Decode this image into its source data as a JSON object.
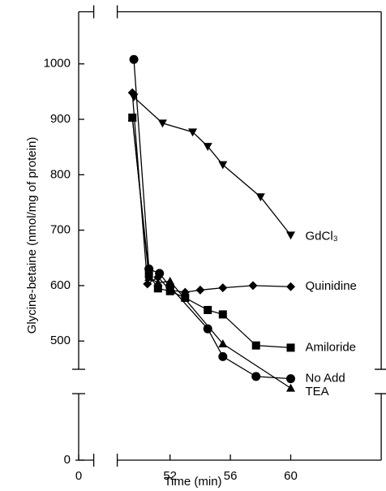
{
  "chart_data": {
    "type": "line",
    "x_label": "Time (min)",
    "y_label": "Glycine-betaine (nmol/mg of protein)",
    "xlim": [
      0,
      66
    ],
    "xticks": [
      0,
      52,
      56,
      60
    ],
    "xbreak": [
      1,
      48.5
    ],
    "ylim": [
      0,
      1094
    ],
    "yticks": [
      0,
      500,
      600,
      700,
      800,
      900,
      1000
    ],
    "ybreak": [
      120,
      449
    ],
    "color": "#000000",
    "series": [
      {
        "name": "GdCl₃",
        "marker": "triangle-down",
        "x": [
          49.6,
          51.5,
          53.5,
          54.5,
          55.5,
          58,
          60
        ],
        "values": [
          940,
          893,
          877,
          851,
          818,
          760,
          691
        ]
      },
      {
        "name": "Quinidine",
        "marker": "diamond",
        "x": [
          49.5,
          50.5,
          51.2,
          52,
          53,
          54,
          55.5,
          57.5,
          60
        ],
        "values": [
          948,
          603,
          615,
          592,
          588,
          592,
          596,
          600,
          598
        ]
      },
      {
        "name": "Amiloride",
        "marker": "square",
        "x": [
          49.5,
          50.6,
          51.2,
          52,
          53,
          54.5,
          55.5,
          57.7,
          60
        ],
        "values": [
          903,
          620,
          595,
          590,
          578,
          556,
          548,
          492,
          488
        ]
      },
      {
        "name": "No Add",
        "marker": "circle",
        "x": [
          49.6,
          50.6,
          51.3,
          52,
          54.5,
          55.5,
          57.7,
          60
        ],
        "values": [
          1008,
          630,
          622,
          598,
          522,
          472,
          436,
          432
        ]
      },
      {
        "name": "TEA",
        "marker": "triangle-up",
        "x": [
          49.5,
          50.6,
          51.2,
          52,
          55.5,
          60
        ],
        "values": [
          903,
          615,
          605,
          608,
          495,
          415
        ]
      }
    ]
  }
}
